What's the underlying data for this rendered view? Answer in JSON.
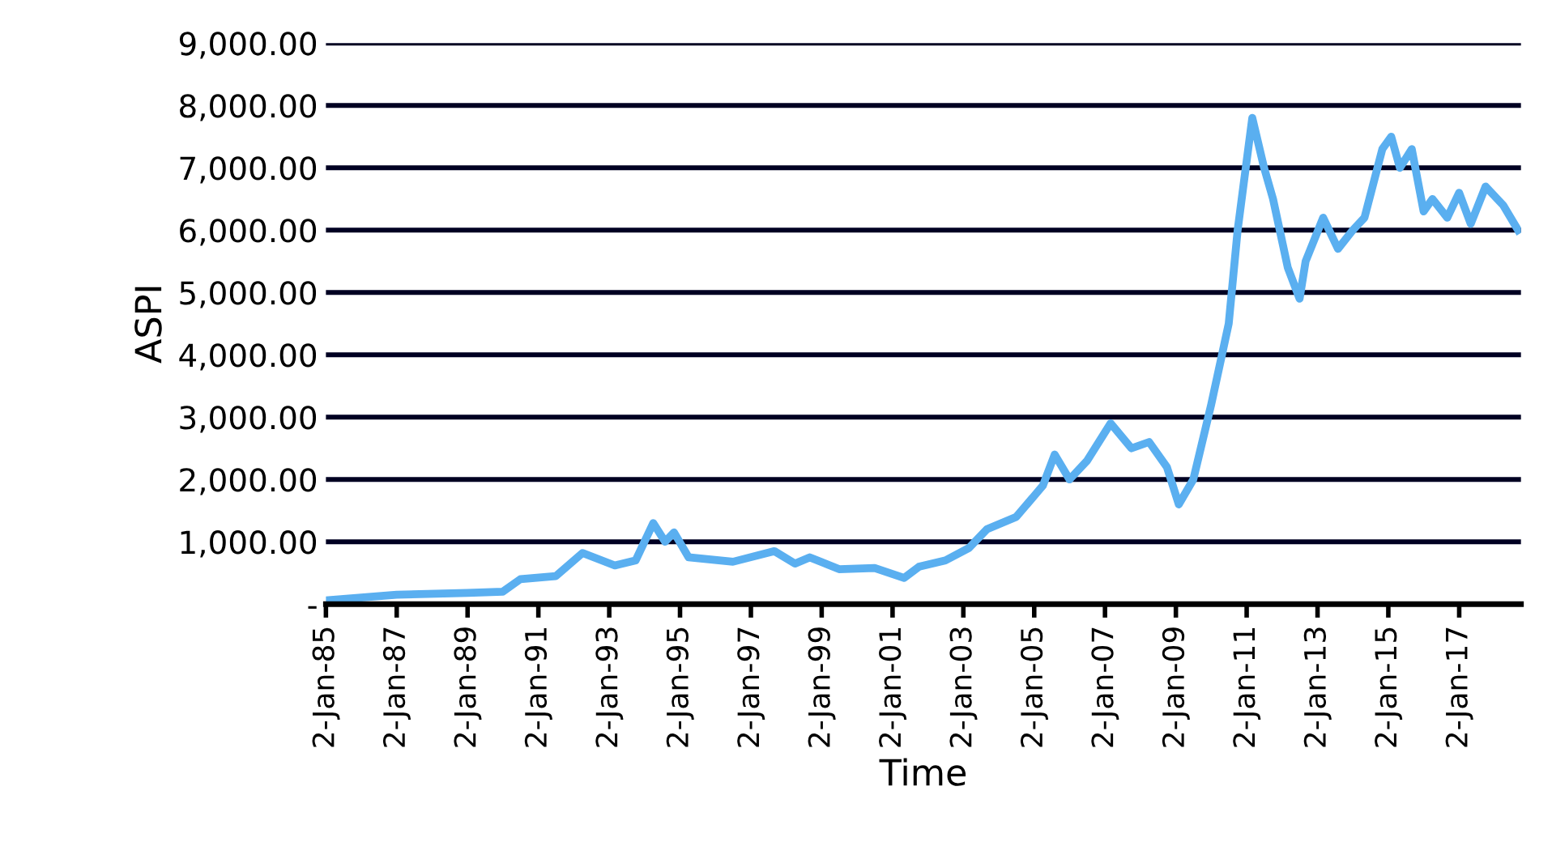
{
  "chart_data": {
    "type": "line",
    "xlabel": "Time",
    "ylabel": "ASPI",
    "x": [
      "1985-01-02",
      "1987-01",
      "1989-01",
      "1990-01",
      "1990-07",
      "1991-07",
      "1992-04",
      "1993-03",
      "1993-10",
      "1994-04",
      "1994-08",
      "1994-11",
      "1995-04",
      "1996-07",
      "1997-09",
      "1998-04",
      "1998-09",
      "1999-07",
      "2000-07",
      "2001-05",
      "2001-10",
      "2002-07",
      "2003-03",
      "2003-09",
      "2004-07",
      "2005-04",
      "2005-08",
      "2006-01",
      "2006-07",
      "2007-03",
      "2007-10",
      "2008-04",
      "2008-10",
      "2009-02",
      "2009-07",
      "2010-01",
      "2010-07",
      "2010-10",
      "2011-01",
      "2011-03",
      "2011-07",
      "2011-10",
      "2012-03",
      "2012-07",
      "2012-09",
      "2013-03",
      "2013-08",
      "2014-01",
      "2014-05",
      "2014-11",
      "2015-02",
      "2015-05",
      "2015-09",
      "2016-01",
      "2016-04",
      "2016-09",
      "2017-01",
      "2017-05",
      "2017-10",
      "2018-04",
      "2018-09"
    ],
    "series": [
      {
        "color": "#5aaff0",
        "values": [
          60,
          150,
          180,
          200,
          400,
          450,
          820,
          620,
          700,
          1300,
          1000,
          1150,
          750,
          680,
          850,
          650,
          750,
          560,
          580,
          420,
          600,
          700,
          900,
          1200,
          1400,
          1900,
          2400,
          2000,
          2300,
          2900,
          2500,
          2600,
          2200,
          1600,
          2000,
          3200,
          4500,
          6000,
          7100,
          7800,
          7000,
          6500,
          5400,
          4900,
          5500,
          6200,
          5700,
          6000,
          6200,
          7300,
          7500,
          7000,
          7300,
          6300,
          6500,
          6200,
          6600,
          6100,
          6700,
          6400,
          6000
        ]
      }
    ],
    "xlim": [
      "1985-01-02",
      "2018-10-01"
    ],
    "xticks": [
      {
        "value": "1985-01-02",
        "label": "2-Jan-85"
      },
      {
        "value": "1987-01-02",
        "label": "2-Jan-87"
      },
      {
        "value": "1989-01-02",
        "label": "2-Jan-89"
      },
      {
        "value": "1991-01-02",
        "label": "2-Jan-91"
      },
      {
        "value": "1993-01-02",
        "label": "2-Jan-93"
      },
      {
        "value": "1995-01-02",
        "label": "2-Jan-95"
      },
      {
        "value": "1997-01-02",
        "label": "2-Jan-97"
      },
      {
        "value": "1999-01-02",
        "label": "2-Jan-99"
      },
      {
        "value": "2001-01-02",
        "label": "2-Jan-01"
      },
      {
        "value": "2003-01-02",
        "label": "2-Jan-03"
      },
      {
        "value": "2005-01-02",
        "label": "2-Jan-05"
      },
      {
        "value": "2007-01-02",
        "label": "2-Jan-07"
      },
      {
        "value": "2009-01-02",
        "label": "2-Jan-09"
      },
      {
        "value": "2011-01-02",
        "label": "2-Jan-11"
      },
      {
        "value": "2013-01-02",
        "label": "2-Jan-13"
      },
      {
        "value": "2015-01-02",
        "label": "2-Jan-15"
      },
      {
        "value": "2017-01-02",
        "label": "2-Jan-17"
      }
    ],
    "ylim": [
      0,
      9000
    ],
    "yticks": [
      {
        "value": 0,
        "label": "-"
      },
      {
        "value": 1000,
        "label": "1,000.00"
      },
      {
        "value": 2000,
        "label": "2,000.00"
      },
      {
        "value": 3000,
        "label": "3,000.00"
      },
      {
        "value": 4000,
        "label": "4,000.00"
      },
      {
        "value": 5000,
        "label": "5,000.00"
      },
      {
        "value": 6000,
        "label": "6,000.00"
      },
      {
        "value": 7000,
        "label": "7,000.00"
      },
      {
        "value": 8000,
        "label": "8,000.00"
      },
      {
        "value": 9000,
        "label": "9,000.00"
      }
    ],
    "grid": "y",
    "line_style": "solid",
    "marker": "none"
  }
}
